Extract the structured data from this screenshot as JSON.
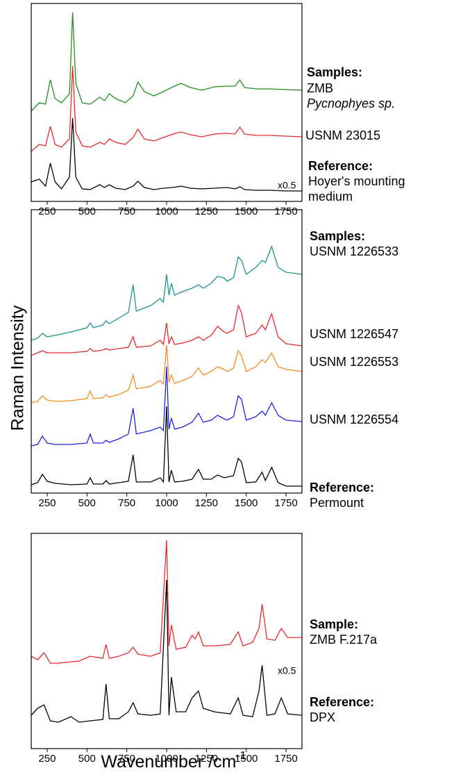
{
  "ylabel": "Raman Intensity",
  "xlabel": {
    "text": "Wavenumber /cm",
    "superscript": "-1"
  },
  "chart_data": [
    {
      "type": "line",
      "x": [
        150,
        200,
        240,
        270,
        300,
        340,
        390,
        410,
        430,
        470,
        520,
        580,
        610,
        640,
        680,
        740,
        790,
        820,
        860,
        920,
        980,
        1040,
        1090,
        1150,
        1220,
        1300,
        1380,
        1430,
        1460,
        1490,
        1560,
        1650,
        1750,
        1850
      ],
      "series": [
        {
          "color": "#1f8f1f",
          "values": [
            130,
            142,
            140,
            175,
            148,
            142,
            155,
            272,
            170,
            142,
            140,
            150,
            145,
            155,
            148,
            142,
            152,
            172,
            158,
            152,
            158,
            165,
            170,
            164,
            160,
            165,
            166,
            166,
            175,
            164,
            162,
            162,
            161,
            160
          ]
        },
        {
          "color": "#e8282b",
          "values": [
            72,
            82,
            80,
            108,
            82,
            78,
            90,
            195,
            100,
            80,
            78,
            85,
            82,
            90,
            85,
            82,
            92,
            104,
            90,
            87,
            92,
            97,
            100,
            96,
            93,
            97,
            98,
            97,
            107,
            97,
            95,
            95,
            94,
            93
          ]
        },
        {
          "color": "#000000",
          "values": [
            28,
            32,
            22,
            55,
            28,
            18,
            35,
            120,
            35,
            18,
            17,
            24,
            20,
            24,
            19,
            17,
            22,
            29,
            20,
            17,
            19,
            20,
            22,
            19,
            18,
            19,
            20,
            18,
            21,
            17,
            16,
            16,
            15,
            15
          ]
        }
      ],
      "xlim": [
        150,
        1850
      ],
      "xticks": [
        250,
        500,
        750,
        1000,
        1250,
        1500,
        1750
      ],
      "ylim": [
        0,
        285
      ],
      "annotations": [
        "Samples:",
        "ZMB",
        "Pycnophyes sp.",
        "USNM 23015",
        "Reference:",
        "Hoyer's mounting",
        "medium",
        "x0.5"
      ]
    },
    {
      "type": "line",
      "x": [
        150,
        190,
        220,
        250,
        300,
        400,
        500,
        520,
        540,
        600,
        620,
        640,
        700,
        760,
        790,
        810,
        900,
        960,
        980,
        1000,
        1015,
        1030,
        1050,
        1100,
        1160,
        1200,
        1230,
        1280,
        1320,
        1360,
        1380,
        1420,
        1450,
        1470,
        1500,
        1560,
        1600,
        1620,
        1660,
        1700,
        1750,
        1850
      ],
      "series": [
        {
          "color": "#1a9090",
          "values": [
            220,
            223,
            230,
            225,
            227,
            232,
            238,
            245,
            238,
            242,
            248,
            244,
            252,
            260,
            300,
            262,
            270,
            280,
            275,
            315,
            285,
            302,
            285,
            290,
            295,
            300,
            295,
            302,
            312,
            310,
            305,
            310,
            340,
            335,
            315,
            325,
            335,
            332,
            355,
            325,
            318,
            315
          ]
        },
        {
          "color": "#e8282b",
          "values": [
            198,
            202,
            205,
            202,
            202,
            202,
            204,
            208,
            204,
            206,
            208,
            206,
            208,
            210,
            225,
            210,
            212,
            220,
            214,
            245,
            215,
            225,
            214,
            216,
            220,
            225,
            220,
            227,
            240,
            232,
            230,
            235,
            270,
            260,
            225,
            230,
            242,
            235,
            258,
            225,
            215,
            212
          ]
        },
        {
          "color": "#f28c1e",
          "values": [
            130,
            132,
            140,
            134,
            132,
            133,
            136,
            147,
            136,
            137,
            142,
            138,
            142,
            148,
            170,
            150,
            154,
            162,
            157,
            213,
            160,
            170,
            158,
            162,
            168,
            180,
            170,
            175,
            182,
            178,
            175,
            180,
            205,
            198,
            175,
            182,
            192,
            188,
            202,
            182,
            178,
            175
          ]
        },
        {
          "color": "#1f1fe0",
          "values": [
            68,
            70,
            82,
            72,
            70,
            70,
            72,
            85,
            72,
            72,
            76,
            73,
            78,
            85,
            122,
            85,
            90,
            95,
            90,
            182,
            92,
            108,
            92,
            95,
            102,
            115,
            102,
            105,
            112,
            107,
            105,
            110,
            140,
            135,
            105,
            110,
            118,
            112,
            130,
            112,
            105,
            103
          ]
        },
        {
          "color": "#000000",
          "values": [
            12,
            15,
            27,
            17,
            14,
            12,
            13,
            22,
            13,
            13,
            18,
            13,
            15,
            17,
            55,
            16,
            16,
            22,
            16,
            125,
            16,
            33,
            16,
            17,
            20,
            34,
            20,
            20,
            26,
            22,
            23,
            25,
            50,
            45,
            15,
            16,
            30,
            18,
            37,
            15,
            10,
            10
          ]
        }
      ],
      "xlim": [
        150,
        1850
      ],
      "xticks": [
        250,
        500,
        750,
        1000,
        1250,
        1500,
        1750
      ],
      "ylim": [
        0,
        408
      ],
      "annotations": [
        "Samples:",
        "USNM 1226533",
        "USNM 1226547",
        "USNM 1226553",
        "USNM 1226554",
        "Reference:",
        "Permount"
      ]
    },
    {
      "type": "line",
      "x": [
        150,
        190,
        230,
        270,
        320,
        400,
        450,
        520,
        600,
        620,
        640,
        700,
        760,
        790,
        820,
        900,
        960,
        1000,
        1015,
        1030,
        1060,
        1120,
        1160,
        1180,
        1200,
        1230,
        1300,
        1400,
        1450,
        1480,
        1540,
        1580,
        1600,
        1630,
        1680,
        1720,
        1760,
        1850
      ],
      "series": [
        {
          "color": "#000000",
          "values": [
            48,
            58,
            63,
            40,
            38,
            46,
            38,
            40,
            42,
            93,
            43,
            43,
            53,
            66,
            50,
            48,
            50,
            243,
            48,
            103,
            53,
            53,
            73,
            78,
            83,
            58,
            53,
            50,
            73,
            48,
            46,
            83,
            120,
            48,
            50,
            73,
            50,
            48
          ]
        },
        {
          "color": "#e8282b",
          "values": [
            133,
            128,
            138,
            123,
            123,
            125,
            126,
            133,
            130,
            150,
            130,
            133,
            138,
            146,
            136,
            133,
            138,
            300,
            148,
            178,
            143,
            146,
            163,
            158,
            168,
            148,
            148,
            150,
            168,
            148,
            153,
            173,
            208,
            158,
            156,
            173,
            160,
            160
          ]
        }
      ],
      "xlim": [
        150,
        1850
      ],
      "xticks": [
        250,
        500,
        750,
        1000,
        1250,
        1500,
        1750
      ],
      "ylim": [
        0,
        310
      ],
      "annotations": [
        "Sample:",
        "ZMB F.217a",
        "x0.5",
        "Reference:",
        "DPX"
      ]
    }
  ]
}
